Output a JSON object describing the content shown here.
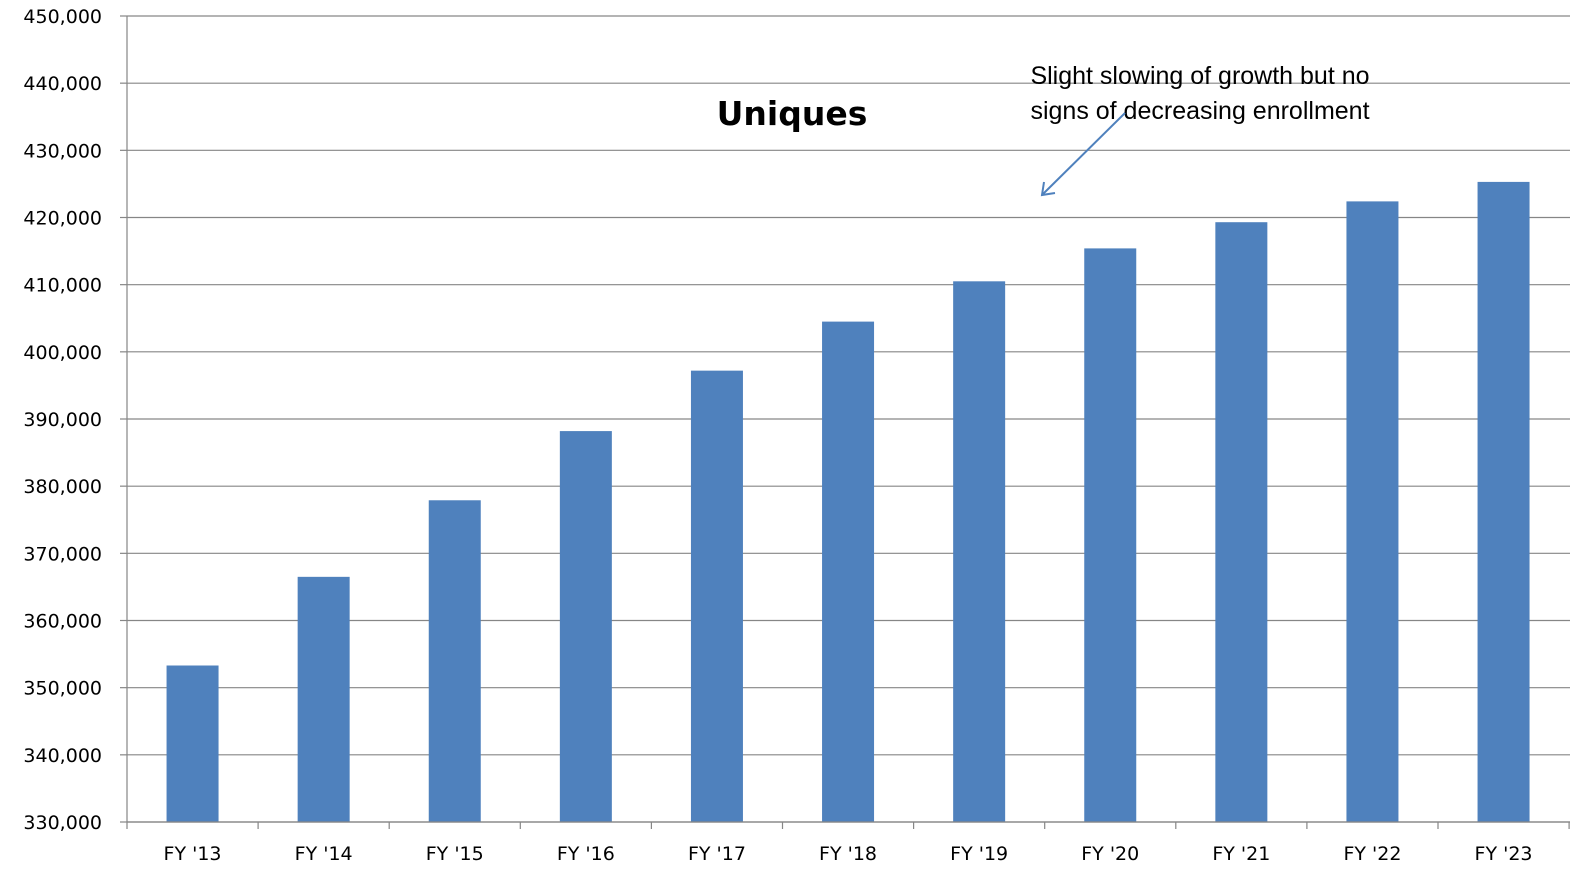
{
  "chart_data": {
    "type": "bar",
    "title": "Uniques",
    "xlabel": "",
    "ylabel": "",
    "categories": [
      "FY '13",
      "FY '14",
      "FY '15",
      "FY '16",
      "FY '17",
      "FY '18",
      "FY '19",
      "FY '20",
      "FY '21",
      "FY '22",
      "FY '23"
    ],
    "series": [
      {
        "values": [
          353300,
          366500,
          377900,
          388200,
          397200,
          404500,
          410500,
          415400,
          419300,
          422400,
          425300
        ]
      }
    ],
    "ylim": [
      330000,
      450000
    ],
    "yticks": [
      "330,000",
      "340,000",
      "350,000",
      "360,000",
      "370,000",
      "380,000",
      "390,000",
      "400,000",
      "410,000",
      "420,000",
      "430,000",
      "440,000",
      "450,000"
    ],
    "grid": true,
    "legend": "none",
    "bar_color": "#4F81BD",
    "annotation": {
      "lines": [
        "Slight slowing of growth but no",
        "signs of decreasing enrollment"
      ],
      "points_to": "FY '19",
      "arrow_color": "#4F81BD"
    }
  }
}
